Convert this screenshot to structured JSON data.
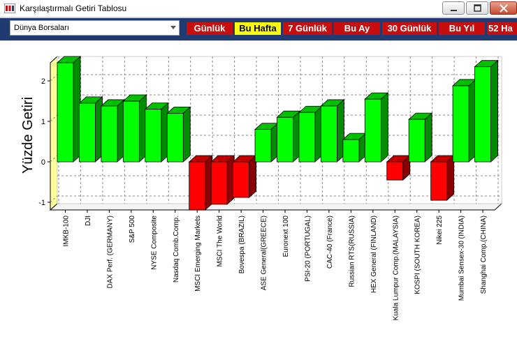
{
  "window": {
    "title": "Karşılaştırmalı Getiri Tablosu"
  },
  "toolbar": {
    "market_select": {
      "value": "Dünya Borsaları"
    },
    "periods": [
      "Günlük",
      "Bu Hafta",
      "7 Günlük",
      "Bu Ay",
      "30 Günlük",
      "Bu Yıl",
      "52 Ha"
    ],
    "active_period": "Bu Hafta"
  },
  "colors": {
    "positive": "#00ff00",
    "negative": "#ff0000",
    "toolbar": "#203a72",
    "active_tab": "#ffff00",
    "tab": "#c70d0d"
  },
  "chart_data": {
    "type": "bar",
    "ylabel": "Yüzde Getiri",
    "ylim": [
      -1.2,
      2.5
    ],
    "yticks": [
      -1,
      0,
      1,
      2
    ],
    "grid": true,
    "categories": [
      "IMKB-100",
      "DJI",
      "DAX Perf. (GERMANY)",
      "S&P 500",
      "NYSE Composite",
      "Nasdaq Comb.Comp.",
      "MSCI Emerging Markets",
      "MSCI The World",
      "Bovespa (BRAZIL)",
      "ASE General(GREECE)",
      "Euronext 100",
      "PSI-20 (PORTUGAL)",
      "CAC-40 (France)",
      "Russian RTS(RUSSIA)",
      "HEX General (FINLAND)",
      "Kuala Lumpur Comp.(MALAYSIA)",
      "KOSPI (SOUTH KOREA)",
      "Nikei 225",
      "Mumbai Sensex-30 (INDIA)",
      "Shanghai Comp.(CHINA)"
    ],
    "values": [
      2.45,
      1.45,
      1.38,
      1.5,
      1.3,
      1.2,
      -1.2,
      -1.05,
      -0.88,
      0.8,
      1.1,
      1.22,
      1.38,
      0.55,
      1.55,
      -0.45,
      1.05,
      -0.95,
      1.88,
      2.35
    ]
  }
}
